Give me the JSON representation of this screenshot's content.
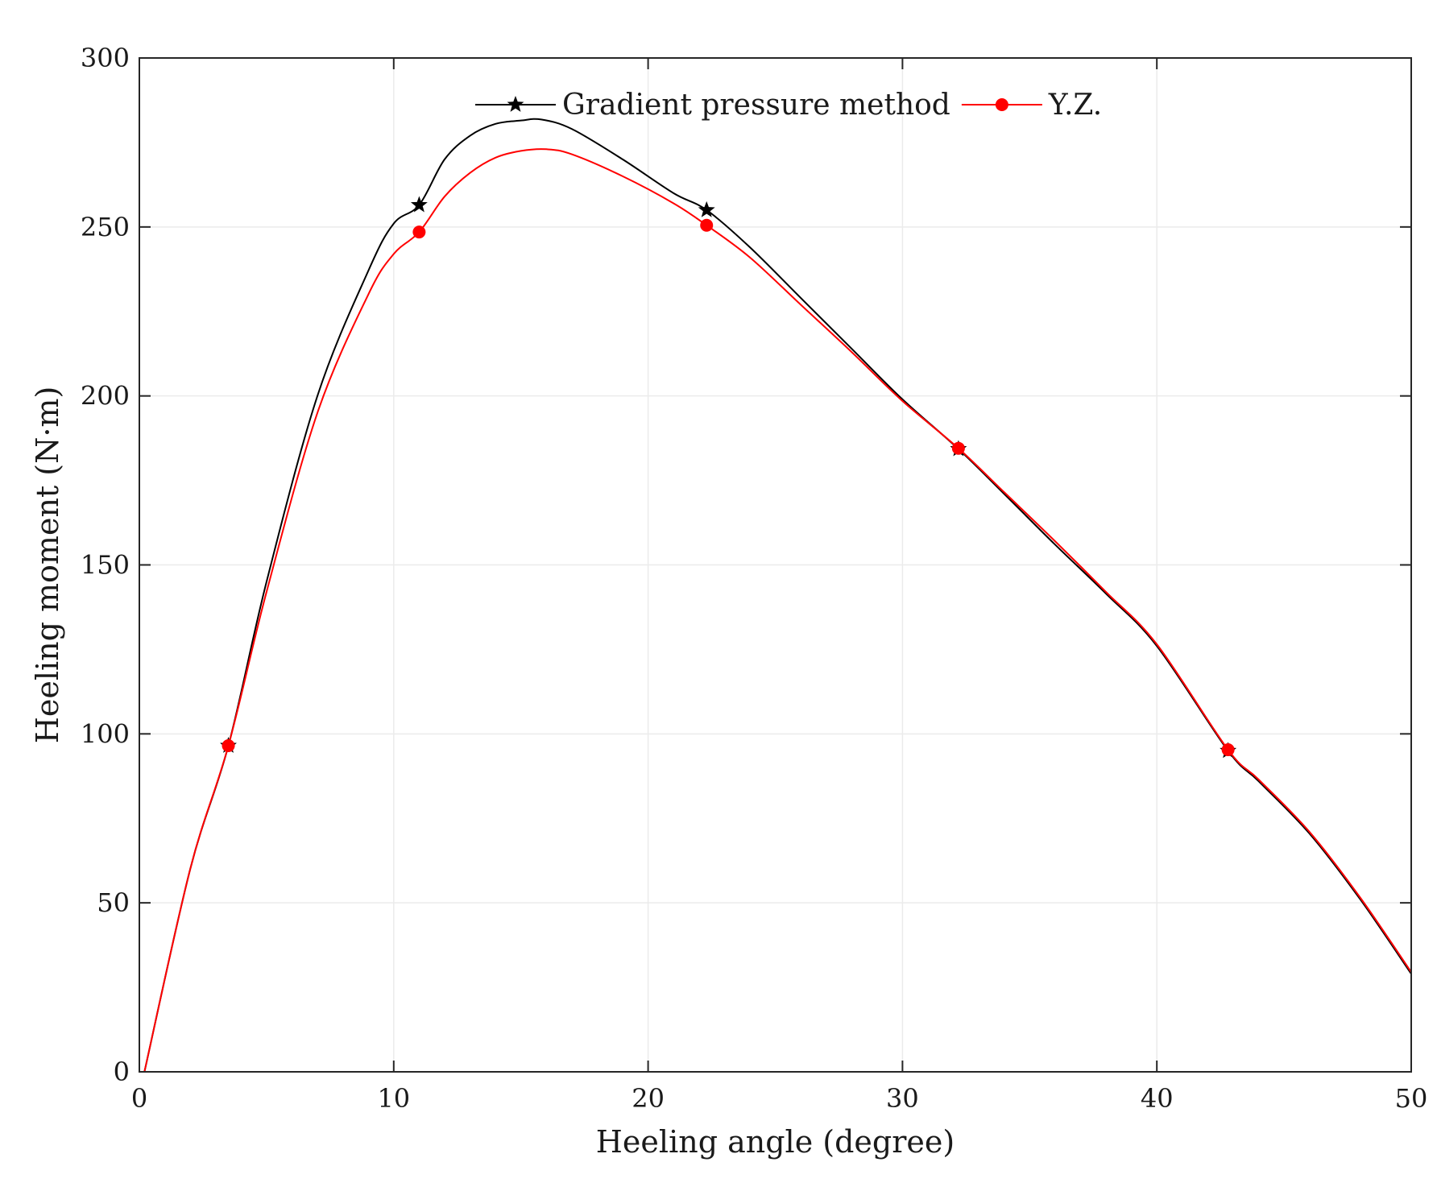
{
  "chart_data": {
    "type": "line",
    "title": "",
    "xlabel": "Heeling angle (degree)",
    "ylabel": "Heeling moment (N·m)",
    "xlim": [
      0,
      50
    ],
    "ylim": [
      0,
      300
    ],
    "xticks": [
      "0",
      "10",
      "20",
      "30",
      "40",
      "50"
    ],
    "yticks": [
      "0",
      "50",
      "100",
      "150",
      "200",
      "250",
      "300"
    ],
    "grid": true,
    "legend_position": "top-center",
    "series": [
      {
        "name": "Gradient pressure method",
        "color": "#000000",
        "marker": "star",
        "x": [
          0.2,
          2,
          3.5,
          5,
          7,
          9,
          10,
          11,
          12,
          13,
          14,
          15,
          15.8,
          17,
          19,
          21,
          22.3,
          24,
          26,
          28,
          30,
          32.2,
          34,
          36,
          38,
          40,
          42.8,
          44,
          46,
          48,
          50
        ],
        "y": [
          0,
          60,
          96.5,
          145,
          200,
          237,
          251,
          256.5,
          270,
          277,
          280.5,
          281.5,
          281.8,
          279,
          270,
          260,
          255,
          244,
          229,
          214,
          199,
          184.3,
          171,
          156,
          141.5,
          126,
          95,
          86,
          70.5,
          51,
          29
        ],
        "marker_indices": [
          2,
          7,
          16,
          21,
          26
        ]
      },
      {
        "name": "Y.Z.",
        "color": "#ff0000",
        "marker": "circle",
        "x": [
          0.2,
          2,
          3.5,
          5,
          7,
          9,
          10,
          11,
          12,
          13,
          14,
          15,
          16,
          17,
          19,
          21,
          22.3,
          24,
          26,
          28,
          30,
          32.2,
          34,
          36,
          38,
          40,
          42.8,
          44,
          46,
          48,
          50
        ],
        "y": [
          0,
          60,
          96.5,
          142,
          195,
          230,
          242,
          248.5,
          259,
          266,
          270.5,
          272.5,
          273,
          271.5,
          265,
          257,
          250.5,
          241,
          227,
          213,
          198.5,
          184.5,
          171.5,
          157,
          142,
          126.5,
          95.3,
          86.5,
          71,
          51.5,
          29.5
        ],
        "marker_indices": [
          2,
          7,
          16,
          21,
          26
        ]
      }
    ]
  }
}
